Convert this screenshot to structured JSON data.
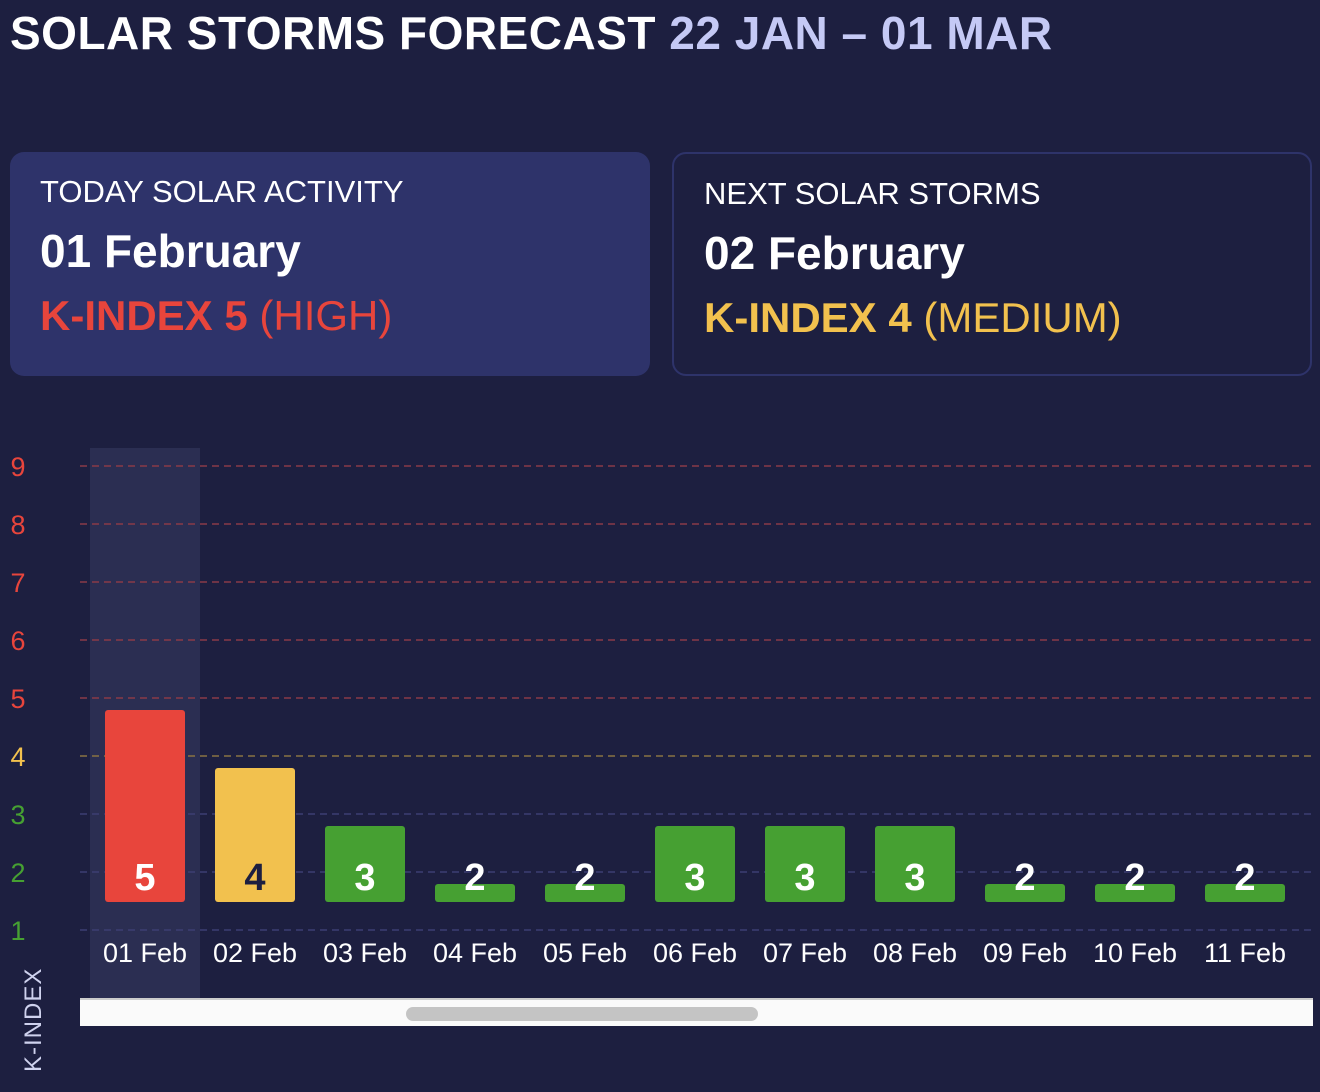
{
  "header": {
    "title": "SOLAR STORMS FORECAST",
    "range": "22 JAN – 01 MAR"
  },
  "today_card": {
    "label": "TODAY SOLAR ACTIVITY",
    "date": "01 February",
    "kindex": "K-INDEX 5",
    "level": "(HIGH)",
    "color": "#e8453c"
  },
  "next_card": {
    "label": "NEXT SOLAR STORMS",
    "date": "02 February",
    "kindex": "K-INDEX 4",
    "level": "(MEDIUM)",
    "color": "#f2c14e"
  },
  "colors": {
    "background": "#1d1f40",
    "card": "#2e336a",
    "high": "#e8453c",
    "medium": "#f2c14e",
    "low": "#46a032"
  },
  "chart_data": {
    "type": "bar",
    "categories": [
      "01 Feb",
      "02 Feb",
      "03 Feb",
      "04 Feb",
      "05 Feb",
      "06 Feb",
      "07 Feb",
      "08 Feb",
      "09 Feb",
      "10 Feb",
      "11 Feb"
    ],
    "values": [
      5,
      4,
      3,
      2,
      2,
      3,
      3,
      3,
      2,
      2,
      2
    ],
    "ylabel": "K-INDEX",
    "yticks": [
      1,
      2,
      3,
      4,
      5,
      6,
      7,
      8,
      9
    ],
    "ylim": [
      1,
      9
    ],
    "highlighted_category": "01 Feb",
    "grid": "dashed",
    "color_rule": {
      "low_max": 3,
      "medium": 4,
      "high_min": 5
    }
  },
  "scrollbar": {
    "visible": true
  }
}
